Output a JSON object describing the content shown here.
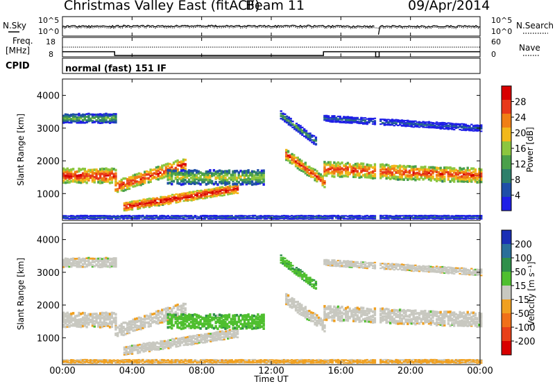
{
  "header": {
    "title": "Christmas Valley East (fitACF)",
    "beam": "Beam 11",
    "date": "09/Apr/2014"
  },
  "noise_panel": {
    "left_label": "N.Sky",
    "right_label": "N.Search",
    "left_ticks": [
      "10^5",
      "10^0"
    ],
    "right_ticks": [
      "10^5",
      "10^0"
    ]
  },
  "freq_panel": {
    "left_label_1": "Freq.",
    "left_label_2": "[MHz]",
    "right_label": "Nave",
    "left_ticks": [
      "18",
      "8"
    ],
    "right_ticks": [
      "60",
      "0"
    ]
  },
  "cpid_panel": {
    "label": "CPID",
    "text": "normal (fast) 151 IF"
  },
  "power_panel": {
    "ylabel": "Slant Range [km]",
    "yticks": [
      "4000",
      "3000",
      "2000",
      "1000"
    ],
    "colorbar_label": "Power [dB]",
    "colorbar_ticks": [
      "28",
      "24",
      "20",
      "16",
      "12",
      "8",
      "4"
    ]
  },
  "velocity_panel": {
    "ylabel": "Slant Range [km]",
    "yticks": [
      "4000",
      "3000",
      "2000",
      "1000"
    ],
    "colorbar_label": "Velocity [m s⁻¹]",
    "colorbar_ticks": [
      "200",
      "100",
      "50",
      "15",
      "-15",
      "-50",
      "-100",
      "-200"
    ]
  },
  "xaxis": {
    "ticks": [
      "00:00",
      "04:00",
      "08:00",
      "12:00",
      "16:00",
      "20:00",
      "00:00"
    ],
    "label": "Time UT"
  },
  "colors": {
    "power_scale": [
      "#1f1fe6",
      "#1f4fa8",
      "#2d7f6a",
      "#4aa04a",
      "#8cc63f",
      "#f2b81a",
      "#f07f14",
      "#e8391a",
      "#d80000"
    ],
    "velocity_scale": [
      "#1a2fb5",
      "#2a6f9a",
      "#2f8f4a",
      "#4fbf2f",
      "#c8c8c0",
      "#f0a020",
      "#f07018",
      "#e84018",
      "#d80000"
    ]
  },
  "chart_data": {
    "type": "heatmap",
    "x_range_hours": [
      0,
      24
    ],
    "y_range_km": [
      180,
      4500
    ],
    "panels": [
      "Power [dB]",
      "Velocity [m s⁻¹]"
    ],
    "power_range_db": [
      0,
      30
    ],
    "velocity_range": [
      -200,
      200
    ],
    "scatter_bands": [
      {
        "start_h": 0.0,
        "end_h": 3.0,
        "center_km": 1550,
        "width_km": 450,
        "power_db": 27,
        "velocity": -8
      },
      {
        "start_h": 3.0,
        "end_h": 7.0,
        "center_km": 1200,
        "end_center_km": 1900,
        "width_km": 400,
        "power_db": 27,
        "velocity": -10
      },
      {
        "start_h": 3.5,
        "end_h": 10.0,
        "center_km": 600,
        "end_center_km": 1150,
        "width_km": 280,
        "power_db": 29,
        "velocity": -5
      },
      {
        "start_h": 6.0,
        "end_h": 11.5,
        "center_km": 1500,
        "width_km": 450,
        "power_db": 17,
        "velocity": 55
      },
      {
        "start_h": 12.8,
        "end_h": 15.0,
        "center_km": 2200,
        "end_center_km": 1350,
        "width_km": 350,
        "power_db": 26,
        "velocity": -8
      },
      {
        "start_h": 12.5,
        "end_h": 14.5,
        "center_km": 3400,
        "end_center_km": 2600,
        "width_km": 250,
        "power_db": 12,
        "velocity": 60
      },
      {
        "start_h": 15.0,
        "end_h": 24.0,
        "center_km": 1750,
        "end_center_km": 1550,
        "width_km": 450,
        "power_db": 26,
        "velocity": -5
      },
      {
        "start_h": 15.0,
        "end_h": 24.0,
        "center_km": 3300,
        "end_center_km": 3000,
        "width_km": 200,
        "power_db": 8,
        "velocity": -5
      },
      {
        "start_h": 0.0,
        "end_h": 3.0,
        "center_km": 3300,
        "width_km": 300,
        "power_db": 14,
        "velocity": 0
      },
      {
        "start_h": 0.0,
        "end_h": 24.0,
        "center_km": 280,
        "width_km": 120,
        "power_db": 8,
        "velocity": -30
      }
    ],
    "nave": 30,
    "frequency_segments_mhz": [
      {
        "start_h": 0.0,
        "end_h": 3.0,
        "freq": 11
      },
      {
        "start_h": 3.0,
        "end_h": 15.0,
        "freq": 8
      },
      {
        "start_h": 15.0,
        "end_h": 24.0,
        "freq": 11
      }
    ],
    "data_gap_hours": [
      18.0,
      18.2
    ]
  }
}
